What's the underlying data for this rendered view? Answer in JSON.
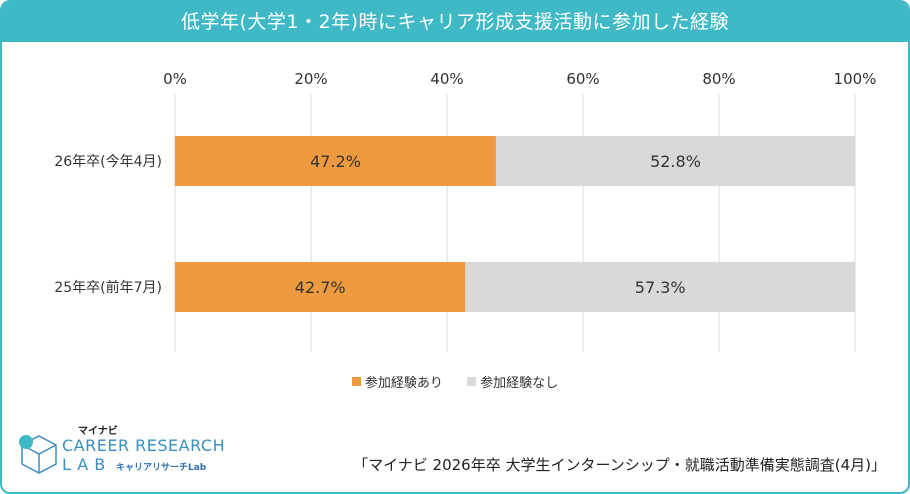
{
  "title": "低学年(大学1・2年)時にキャリア形成支援活動に参加した経験",
  "chart_data": {
    "type": "bar",
    "orientation": "horizontal",
    "stacked": true,
    "title": "低学年(大学1・2年)時にキャリア形成支援活動に参加した経験",
    "categories": [
      "26年卒(今年4月)",
      "25年卒(前年7月)"
    ],
    "series": [
      {
        "name": "参加経験あり",
        "values": [
          47.2,
          42.7
        ],
        "color": "#ed9b3e",
        "labels": [
          "47.2%",
          "42.7%"
        ]
      },
      {
        "name": "参加経験なし",
        "values": [
          52.8,
          57.3
        ],
        "color": "#d9d9d9",
        "labels": [
          "52.8%",
          "57.3%"
        ]
      }
    ],
    "xlim": [
      0,
      100
    ],
    "xticks": [
      0,
      20,
      40,
      60,
      80,
      100
    ],
    "xtick_labels": [
      "0%",
      "20%",
      "40%",
      "60%",
      "80%",
      "100%"
    ],
    "grid": true,
    "legend_position": "bottom"
  },
  "logo": {
    "brand": "マイナビ",
    "name_line1": "CAREER RESEARCH",
    "name_line2": "LAB",
    "sub": "キャリアリサーチLab"
  },
  "source": "「マイナビ 2026年卒 大学生インターンシップ・就職活動準備実態調査(4月)」",
  "colors": {
    "accent": "#3fb9c6",
    "orange": "#ed9b3e",
    "gray": "#d9d9d9"
  }
}
